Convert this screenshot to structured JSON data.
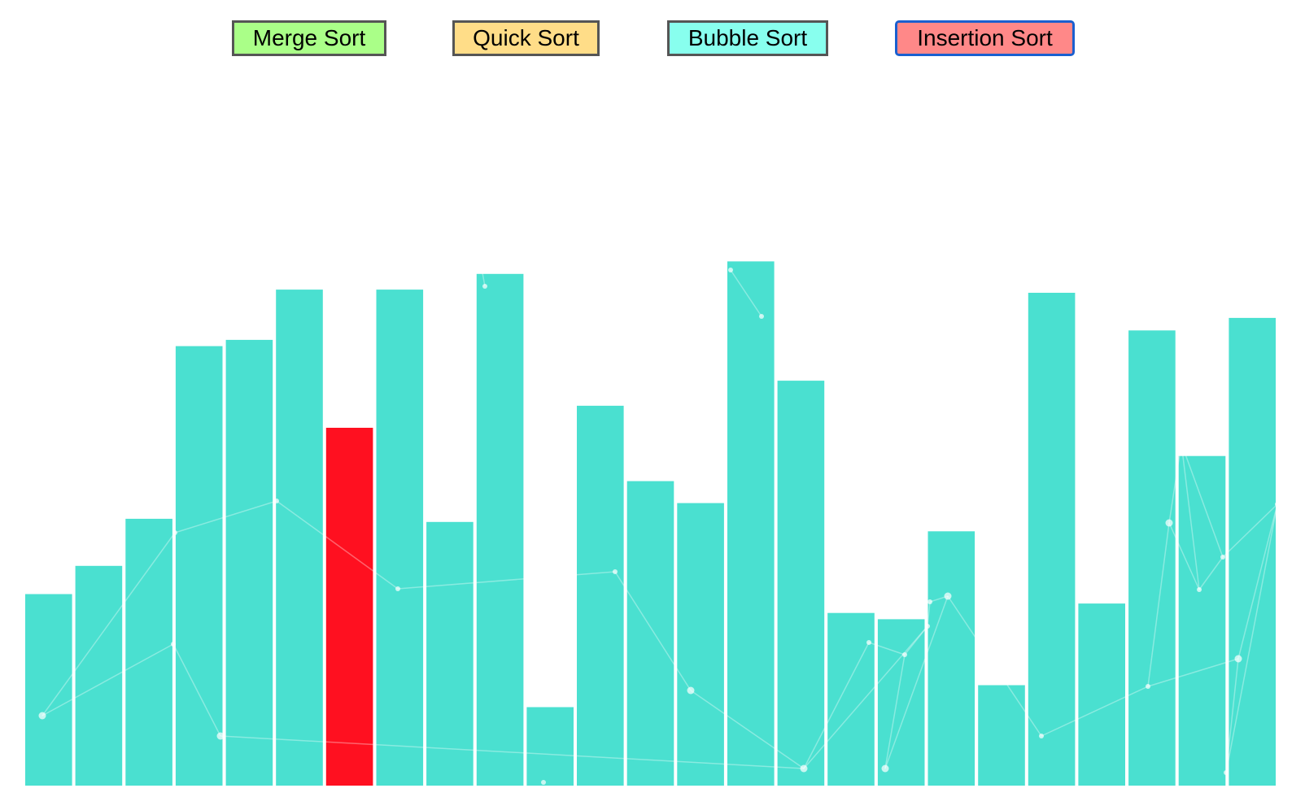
{
  "buttons": [
    {
      "id": "merge",
      "label": "Merge Sort",
      "color": "#aaff88"
    },
    {
      "id": "quick",
      "label": "Quick Sort",
      "color": "#ffdd88"
    },
    {
      "id": "bubble",
      "label": "Bubble Sort",
      "color": "#88ffee"
    },
    {
      "id": "insertion",
      "label": "Insertion Sort",
      "color": "#ff8888",
      "active": true
    }
  ],
  "chart_data": {
    "type": "bar",
    "bar_color": "#4ae0d0",
    "highlight_color": "#ff1020",
    "highlight_index": 6,
    "values": [
      30.5,
      35,
      42.5,
      70,
      71,
      79,
      57,
      79,
      42,
      81.5,
      12.5,
      60.5,
      48.5,
      45,
      83.5,
      64.5,
      27.5,
      26.5,
      40.5,
      16,
      78.5,
      29,
      72.5,
      52.5,
      74.5
    ],
    "ylim": [
      0,
      100
    ]
  }
}
